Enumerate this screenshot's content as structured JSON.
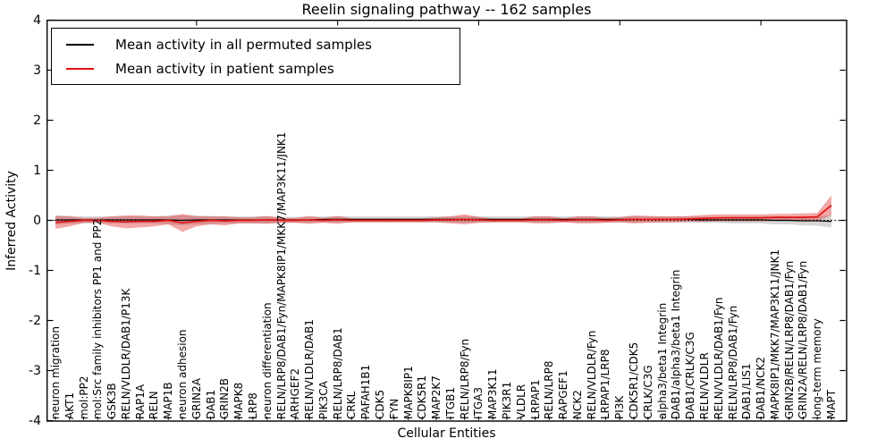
{
  "chart_data": {
    "type": "line",
    "title": "Reelin signaling pathway -- 162 samples",
    "xlabel": "Cellular Entities",
    "ylabel": "Inferred Activity",
    "ylim": [
      -4,
      4
    ],
    "y_ticks": [
      4,
      3,
      2,
      1,
      0,
      -1,
      -2,
      -3,
      -4
    ],
    "grid": false,
    "legend_position": "upper left",
    "zero_line": {
      "style": "dotted",
      "color": "#000000",
      "y": 0
    },
    "categories": [
      "neuron migration",
      "AKT1",
      "mol:PP2",
      "mol:Src family inhibitors PP1 and PP2",
      "GSK3B",
      "RELN/VLDLR/DAB1/P13K",
      "RAP1A",
      "RELN",
      "MAP1B",
      "neuron adhesion",
      "GRIN2A",
      "DAB1",
      "GRIN2B",
      "MAPK8",
      "LRP8",
      "neuron differentiation",
      "RELN/LRP8/DAB1/Fyn/MAPK8IP1/MKK7/MAP3K11/JNK1",
      "ARHGEF2",
      "RELN/VLDLR/DAB1",
      "PIK3CA",
      "RELN/LRP8/DAB1",
      "CRKL",
      "PAFAH1B1",
      "CDK5",
      "FYN",
      "MAPK8IP1",
      "CDK5R1",
      "MAP2K7",
      "ITGB1",
      "RELN/LRP8/Fyn",
      "ITGA3",
      "MAP3K11",
      "PIK3R1",
      "VLDLR",
      "LRPAP1",
      "RELN/LRP8",
      "RAPGEF1",
      "NCK2",
      "RELN/VLDLR/Fyn",
      "LRPAP1/LRP8",
      "PI3K",
      "CDK5R1/CDK5",
      "CRLK/C3G",
      "alpha3/beta1 Integrin",
      "DAB1/alpha3/beta1 Integrin",
      "DAB1/CRLK/C3G",
      "RELN/VLDLR",
      "RELN/VLDLR/DAB1/Fyn",
      "RELN/LRP8/DAB1/Fyn",
      "DAB1/LIS1",
      "DAB1/NCK2",
      "MAPK8IP1/MKK7/MAP3K11/JNK1",
      "GRIN2B/RELN/LRP8/DAB1/Fyn",
      "GRIN2A/RELN/LRP8/DAB1/Fyn",
      "long-term memory",
      "MAPT"
    ],
    "series": [
      {
        "name": "Mean activity in all permuted samples",
        "color": "#000000",
        "band_color": "rgba(0,0,0,0.16)",
        "values": [
          0.01,
          0.01,
          0.01,
          0.01,
          0.01,
          0.01,
          0.01,
          0.01,
          0.01,
          0.0,
          0.01,
          0.01,
          0.01,
          0.01,
          0.01,
          0.01,
          0.01,
          0.01,
          0.01,
          0.02,
          0.02,
          0.02,
          0.02,
          0.02,
          0.02,
          0.02,
          0.02,
          0.02,
          0.02,
          0.02,
          0.02,
          0.02,
          0.02,
          0.02,
          0.02,
          0.02,
          0.02,
          0.02,
          0.02,
          0.02,
          0.02,
          0.02,
          0.02,
          0.02,
          0.02,
          0.02,
          0.01,
          0.01,
          0.01,
          0.01,
          0.01,
          0.0,
          0.0,
          -0.01,
          -0.01,
          -0.02
        ],
        "std": [
          0.09,
          0.08,
          0.07,
          0.07,
          0.07,
          0.07,
          0.07,
          0.07,
          0.09,
          0.1,
          0.09,
          0.08,
          0.07,
          0.07,
          0.07,
          0.07,
          0.06,
          0.06,
          0.06,
          0.06,
          0.06,
          0.06,
          0.06,
          0.06,
          0.06,
          0.06,
          0.06,
          0.06,
          0.06,
          0.07,
          0.06,
          0.06,
          0.06,
          0.06,
          0.06,
          0.06,
          0.06,
          0.06,
          0.06,
          0.06,
          0.06,
          0.06,
          0.06,
          0.06,
          0.06,
          0.06,
          0.06,
          0.06,
          0.07,
          0.07,
          0.07,
          0.08,
          0.08,
          0.09,
          0.1,
          0.12
        ]
      },
      {
        "name": "Mean activity in patient samples",
        "color": "#e51313",
        "band_color": "rgba(221,25,25,0.38)",
        "values": [
          -0.04,
          -0.02,
          0,
          0,
          -0.02,
          -0.03,
          -0.02,
          -0.02,
          0,
          -0.05,
          -0.02,
          0,
          -0.01,
          0,
          0,
          0.01,
          0,
          0,
          0.01,
          0,
          0.01,
          0,
          0,
          0,
          0,
          0,
          0,
          0.01,
          0.01,
          0.02,
          0.01,
          0,
          0,
          0,
          0.01,
          0.01,
          0,
          0.01,
          0.01,
          0,
          0.01,
          0.02,
          0.02,
          0.02,
          0.02,
          0.03,
          0.04,
          0.05,
          0.05,
          0.05,
          0.05,
          0.06,
          0.06,
          0.06,
          0.07,
          0.3
        ],
        "std": [
          0.13,
          0.1,
          0.05,
          0.05,
          0.1,
          0.13,
          0.12,
          0.1,
          0.08,
          0.18,
          0.1,
          0.08,
          0.09,
          0.06,
          0.06,
          0.08,
          0.05,
          0.05,
          0.08,
          0.05,
          0.08,
          0.04,
          0.04,
          0.04,
          0.04,
          0.04,
          0.04,
          0.05,
          0.07,
          0.1,
          0.06,
          0.04,
          0.04,
          0.04,
          0.07,
          0.07,
          0.04,
          0.07,
          0.07,
          0.05,
          0.05,
          0.08,
          0.07,
          0.06,
          0.06,
          0.06,
          0.07,
          0.07,
          0.07,
          0.07,
          0.07,
          0.07,
          0.07,
          0.08,
          0.08,
          0.2
        ]
      }
    ]
  }
}
